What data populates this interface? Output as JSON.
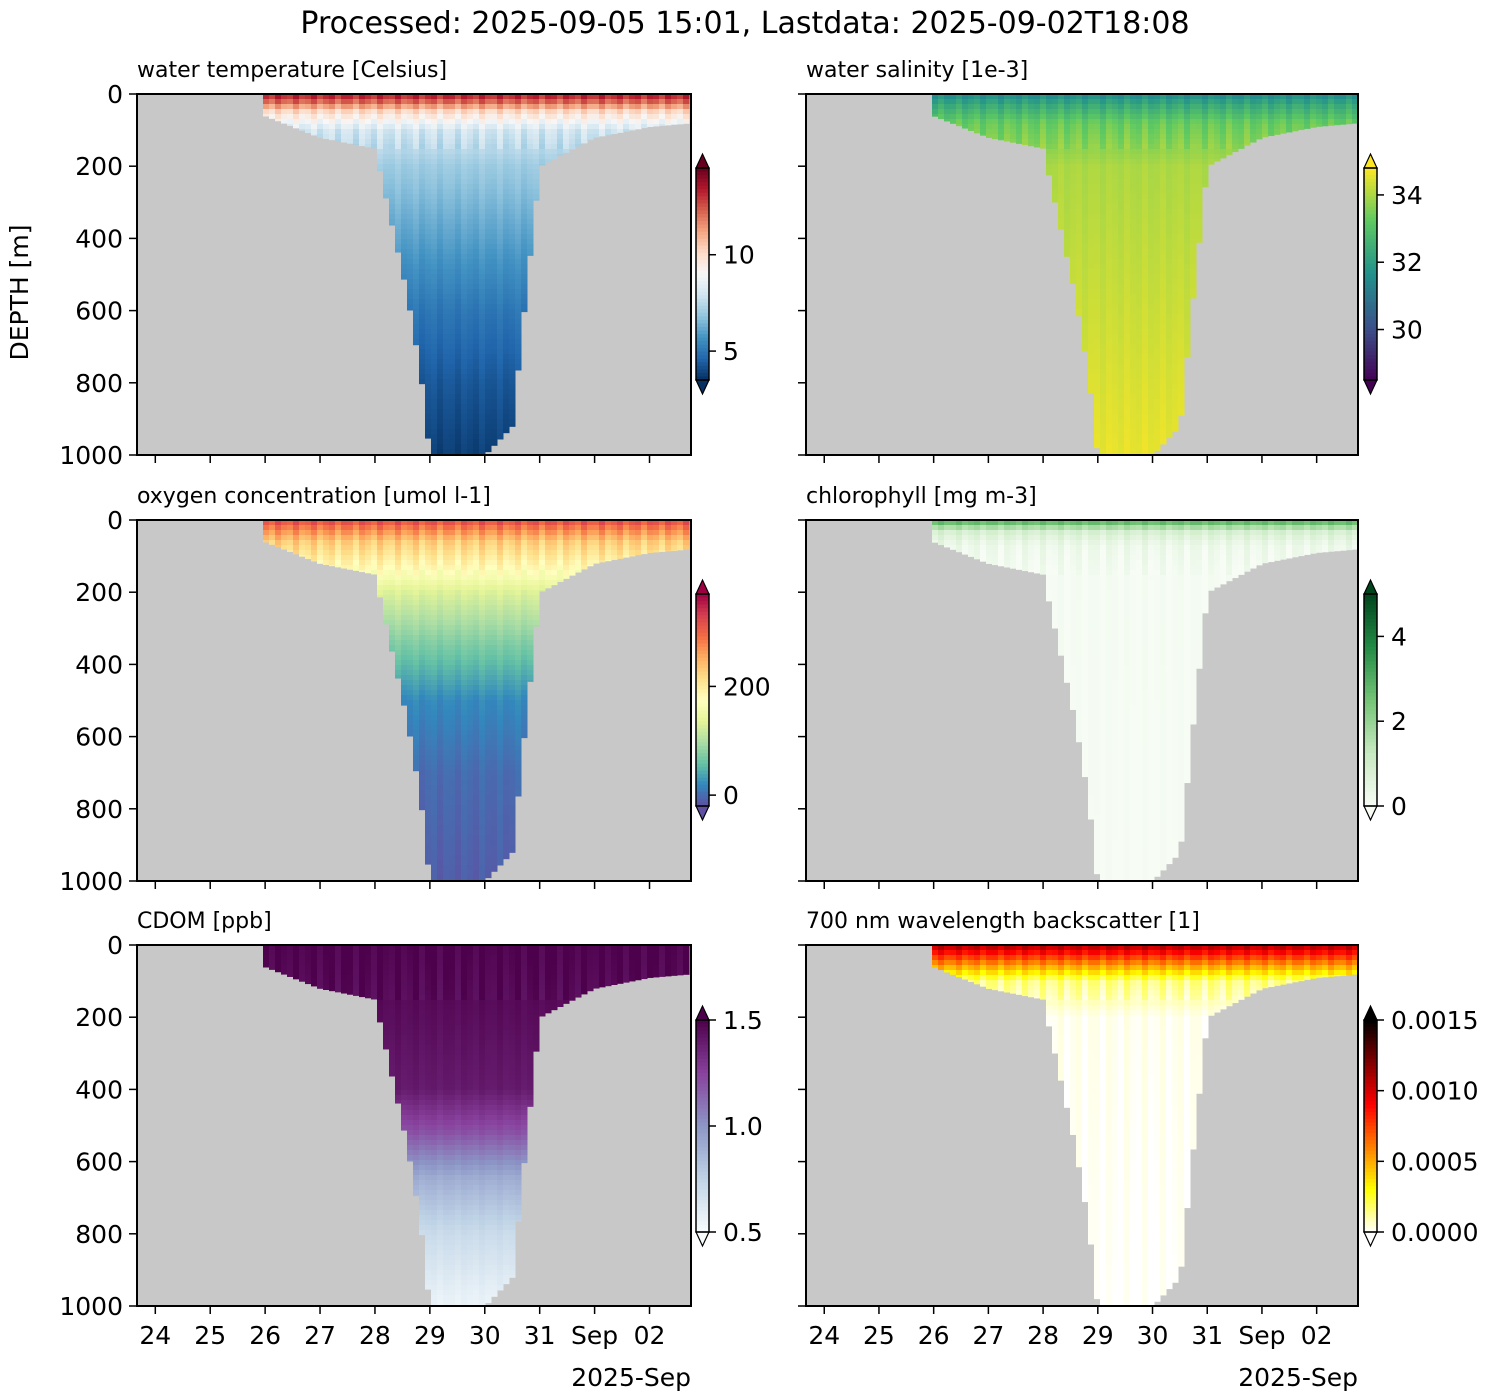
{
  "figure_title": "Processed: 2025-09-05 15:01, Lastdata: 2025-09-02T18:08",
  "chart_data": [
    {
      "type": "heatmap",
      "title": "water temperature [Celsius]",
      "ylabel": "DEPTH [m]",
      "xlabel": "",
      "ylim": [
        1000,
        0
      ],
      "y_ticks": [
        "0",
        "200",
        "400",
        "600",
        "800",
        "1000"
      ],
      "x_ticks": [
        "24",
        "25",
        "26",
        "27",
        "28",
        "29",
        "30",
        "31",
        "Sep",
        "02"
      ],
      "x_offset_label": "2025-Sep",
      "x_range": [
        "2025-08-23T16:00",
        "2025-09-02T18:08"
      ],
      "colormap": "RdBu_r",
      "colorbar_ticks": [
        "5",
        "10"
      ],
      "colorbar_range": [
        3.5,
        14.5
      ],
      "colorbar_extend": "both",
      "grid": false,
      "profile_max_depth": [
        {
          "x": "2025-08-26",
          "y": 60
        },
        {
          "x": "2025-08-27",
          "y": 120
        },
        {
          "x": "2025-08-28",
          "y": 150
        },
        {
          "x": "2025-08-28T14:00",
          "y": 550
        },
        {
          "x": "2025-08-28T20:00",
          "y": 770
        },
        {
          "x": "2025-08-29",
          "y": 1000
        },
        {
          "x": "2025-08-29T12:00",
          "y": 1000
        },
        {
          "x": "2025-08-30",
          "y": 1000
        },
        {
          "x": "2025-08-30T12:00",
          "y": 920
        },
        {
          "x": "2025-08-30T18:00",
          "y": 550
        },
        {
          "x": "2025-08-31",
          "y": 200
        },
        {
          "x": "2025-09-01",
          "y": 120
        },
        {
          "x": "2025-09-02",
          "y": 90
        },
        {
          "x": "2025-09-02T18:08",
          "y": 80
        }
      ],
      "depth_profile": [
        {
          "y": 0,
          "v": 13.5
        },
        {
          "y": 25,
          "v": 12.0
        },
        {
          "y": 50,
          "v": 10.0
        },
        {
          "y": 100,
          "v": 8.0
        },
        {
          "y": 200,
          "v": 7.0
        },
        {
          "y": 400,
          "v": 6.0
        },
        {
          "y": 600,
          "v": 5.0
        },
        {
          "y": 800,
          "v": 4.3
        },
        {
          "y": 1000,
          "v": 3.8
        }
      ]
    },
    {
      "type": "heatmap",
      "title": "water salinity [1e-3]",
      "ylabel": "",
      "xlabel": "",
      "ylim": [
        1000,
        0
      ],
      "y_ticks": [
        "0",
        "200",
        "400",
        "600",
        "800",
        "1000"
      ],
      "x_ticks": [
        "24",
        "25",
        "26",
        "27",
        "28",
        "29",
        "30",
        "31",
        "Sep",
        "02"
      ],
      "x_offset_label": "2025-Sep",
      "x_range": [
        "2025-08-23T16:00",
        "2025-09-02T18:08"
      ],
      "colormap": "viridis",
      "colorbar_ticks": [
        "30",
        "32",
        "34"
      ],
      "colorbar_range": [
        28.5,
        34.8
      ],
      "colorbar_extend": "both",
      "grid": false,
      "profile_max_depth": [
        {
          "x": "2025-08-26",
          "y": 60
        },
        {
          "x": "2025-08-27",
          "y": 120
        },
        {
          "x": "2025-08-28",
          "y": 150
        },
        {
          "x": "2025-08-28T14:00",
          "y": 550
        },
        {
          "x": "2025-08-28T20:00",
          "y": 770
        },
        {
          "x": "2025-08-29",
          "y": 1000
        },
        {
          "x": "2025-08-29T12:00",
          "y": 1000
        },
        {
          "x": "2025-08-30",
          "y": 1000
        },
        {
          "x": "2025-08-30T12:00",
          "y": 920
        },
        {
          "x": "2025-08-30T18:00",
          "y": 550
        },
        {
          "x": "2025-08-31",
          "y": 200
        },
        {
          "x": "2025-09-01",
          "y": 120
        },
        {
          "x": "2025-09-02",
          "y": 90
        },
        {
          "x": "2025-09-02T18:08",
          "y": 80
        }
      ],
      "depth_profile": [
        {
          "y": 0,
          "v": 31.5
        },
        {
          "y": 30,
          "v": 32.3
        },
        {
          "y": 80,
          "v": 33.3
        },
        {
          "y": 200,
          "v": 34.0
        },
        {
          "y": 600,
          "v": 34.3
        },
        {
          "y": 1000,
          "v": 34.6
        }
      ]
    },
    {
      "type": "heatmap",
      "title": "oxygen concentration [umol l-1]",
      "ylabel": "",
      "xlabel": "",
      "ylim": [
        1000,
        0
      ],
      "y_ticks": [
        "0",
        "200",
        "400",
        "600",
        "800",
        "1000"
      ],
      "x_ticks": [
        "24",
        "25",
        "26",
        "27",
        "28",
        "29",
        "30",
        "31",
        "Sep",
        "02"
      ],
      "x_offset_label": "2025-Sep",
      "x_range": [
        "2025-08-23T16:00",
        "2025-09-02T18:08"
      ],
      "colormap": "Spectral_r",
      "colorbar_ticks": [
        "0",
        "200"
      ],
      "colorbar_range": [
        -20,
        370
      ],
      "colorbar_extend": "both",
      "grid": false,
      "profile_max_depth": [
        {
          "x": "2025-08-26",
          "y": 60
        },
        {
          "x": "2025-08-27",
          "y": 120
        },
        {
          "x": "2025-08-28",
          "y": 150
        },
        {
          "x": "2025-08-28T14:00",
          "y": 550
        },
        {
          "x": "2025-08-28T20:00",
          "y": 770
        },
        {
          "x": "2025-08-29",
          "y": 1000
        },
        {
          "x": "2025-08-29T12:00",
          "y": 1000
        },
        {
          "x": "2025-08-30",
          "y": 1000
        },
        {
          "x": "2025-08-30T12:00",
          "y": 920
        },
        {
          "x": "2025-08-30T18:00",
          "y": 550
        },
        {
          "x": "2025-08-31",
          "y": 200
        },
        {
          "x": "2025-09-01",
          "y": 120
        },
        {
          "x": "2025-09-02",
          "y": 90
        },
        {
          "x": "2025-09-02T18:08",
          "y": 80
        }
      ],
      "depth_profile": [
        {
          "y": 0,
          "v": 320
        },
        {
          "y": 25,
          "v": 280
        },
        {
          "y": 60,
          "v": 230
        },
        {
          "y": 120,
          "v": 190
        },
        {
          "y": 200,
          "v": 130
        },
        {
          "y": 350,
          "v": 70
        },
        {
          "y": 500,
          "v": 20
        },
        {
          "y": 700,
          "v": 0
        },
        {
          "y": 1000,
          "v": -10
        }
      ]
    },
    {
      "type": "heatmap",
      "title": "chlorophyll [mg m-3]",
      "ylabel": "",
      "xlabel": "",
      "ylim": [
        1000,
        0
      ],
      "y_ticks": [
        "0",
        "200",
        "400",
        "600",
        "800",
        "1000"
      ],
      "x_ticks": [
        "24",
        "25",
        "26",
        "27",
        "28",
        "29",
        "30",
        "31",
        "Sep",
        "02"
      ],
      "x_offset_label": "2025-Sep",
      "x_range": [
        "2025-08-23T16:00",
        "2025-09-02T18:08"
      ],
      "colormap": "Greens",
      "colorbar_ticks": [
        "0",
        "2",
        "4"
      ],
      "colorbar_range": [
        0,
        5
      ],
      "colorbar_extend": "both",
      "grid": false,
      "profile_max_depth": [
        {
          "x": "2025-08-26",
          "y": 60
        },
        {
          "x": "2025-08-27",
          "y": 120
        },
        {
          "x": "2025-08-28",
          "y": 150
        },
        {
          "x": "2025-08-28T14:00",
          "y": 550
        },
        {
          "x": "2025-08-28T20:00",
          "y": 770
        },
        {
          "x": "2025-08-29",
          "y": 1000
        },
        {
          "x": "2025-08-29T12:00",
          "y": 1000
        },
        {
          "x": "2025-08-30",
          "y": 1000
        },
        {
          "x": "2025-08-30T12:00",
          "y": 920
        },
        {
          "x": "2025-08-30T18:00",
          "y": 550
        },
        {
          "x": "2025-08-31",
          "y": 200
        },
        {
          "x": "2025-09-01",
          "y": 120
        },
        {
          "x": "2025-09-02",
          "y": 90
        },
        {
          "x": "2025-09-02T18:08",
          "y": 80
        }
      ],
      "depth_profile": [
        {
          "y": 0,
          "v": 3.2
        },
        {
          "y": 15,
          "v": 2.0
        },
        {
          "y": 35,
          "v": 0.8
        },
        {
          "y": 70,
          "v": 0.25
        },
        {
          "y": 150,
          "v": 0.05
        },
        {
          "y": 1000,
          "v": 0.0
        }
      ]
    },
    {
      "type": "heatmap",
      "title": "CDOM [ppb]",
      "ylabel": "",
      "xlabel": "",
      "ylim": [
        1000,
        0
      ],
      "y_ticks": [
        "0",
        "200",
        "400",
        "600",
        "800",
        "1000"
      ],
      "x_ticks": [
        "24",
        "25",
        "26",
        "27",
        "28",
        "29",
        "30",
        "31",
        "Sep",
        "02"
      ],
      "x_offset_label": "2025-Sep",
      "x_range": [
        "2025-08-23T16:00",
        "2025-09-02T18:08"
      ],
      "colormap": "BuPu",
      "colorbar_ticks": [
        "0.5",
        "1.0",
        "1.5"
      ],
      "colorbar_range": [
        0.5,
        1.5
      ],
      "colorbar_extend": "both",
      "grid": false,
      "profile_max_depth": [
        {
          "x": "2025-08-26",
          "y": 60
        },
        {
          "x": "2025-08-27",
          "y": 120
        },
        {
          "x": "2025-08-28",
          "y": 150
        },
        {
          "x": "2025-08-28T14:00",
          "y": 550
        },
        {
          "x": "2025-08-28T20:00",
          "y": 770
        },
        {
          "x": "2025-08-29",
          "y": 1000
        },
        {
          "x": "2025-08-29T12:00",
          "y": 1000
        },
        {
          "x": "2025-08-30",
          "y": 1000
        },
        {
          "x": "2025-08-30T12:00",
          "y": 920
        },
        {
          "x": "2025-08-30T18:00",
          "y": 550
        },
        {
          "x": "2025-08-31",
          "y": 200
        },
        {
          "x": "2025-09-01",
          "y": 120
        },
        {
          "x": "2025-09-02",
          "y": 90
        },
        {
          "x": "2025-09-02T18:08",
          "y": 80
        }
      ],
      "depth_profile": [
        {
          "y": 0,
          "v": 1.5
        },
        {
          "y": 400,
          "v": 1.4
        },
        {
          "y": 520,
          "v": 1.2
        },
        {
          "y": 650,
          "v": 0.9
        },
        {
          "y": 800,
          "v": 0.7
        },
        {
          "y": 1000,
          "v": 0.55
        }
      ]
    },
    {
      "type": "heatmap",
      "title": "700 nm wavelength backscatter [1]",
      "ylabel": "",
      "xlabel": "",
      "ylim": [
        1000,
        0
      ],
      "y_ticks": [
        "0",
        "200",
        "400",
        "600",
        "800",
        "1000"
      ],
      "x_ticks": [
        "24",
        "25",
        "26",
        "27",
        "28",
        "29",
        "30",
        "31",
        "Sep",
        "02"
      ],
      "x_offset_label": "2025-Sep",
      "x_range": [
        "2025-08-23T16:00",
        "2025-09-02T18:08"
      ],
      "colormap": "hot_r",
      "colorbar_ticks": [
        "0.0000",
        "0.0005",
        "0.0010",
        "0.0015"
      ],
      "colorbar_range": [
        0,
        0.0015
      ],
      "colorbar_extend": "both",
      "grid": false,
      "profile_max_depth": [
        {
          "x": "2025-08-26",
          "y": 60
        },
        {
          "x": "2025-08-27",
          "y": 120
        },
        {
          "x": "2025-08-28",
          "y": 150
        },
        {
          "x": "2025-08-28T14:00",
          "y": 550
        },
        {
          "x": "2025-08-28T20:00",
          "y": 770
        },
        {
          "x": "2025-08-29",
          "y": 1000
        },
        {
          "x": "2025-08-29T12:00",
          "y": 1000
        },
        {
          "x": "2025-08-30",
          "y": 1000
        },
        {
          "x": "2025-08-30T12:00",
          "y": 920
        },
        {
          "x": "2025-08-30T18:00",
          "y": 550
        },
        {
          "x": "2025-08-31",
          "y": 200
        },
        {
          "x": "2025-09-01",
          "y": 120
        },
        {
          "x": "2025-09-02",
          "y": 90
        },
        {
          "x": "2025-09-02T18:08",
          "y": 80
        }
      ],
      "depth_profile": [
        {
          "y": 0,
          "v": 0.0011
        },
        {
          "y": 30,
          "v": 0.0008
        },
        {
          "y": 60,
          "v": 0.0005
        },
        {
          "y": 100,
          "v": 0.00015
        },
        {
          "y": 200,
          "v": 2e-05
        },
        {
          "y": 1000,
          "v": 0.0
        }
      ]
    }
  ]
}
